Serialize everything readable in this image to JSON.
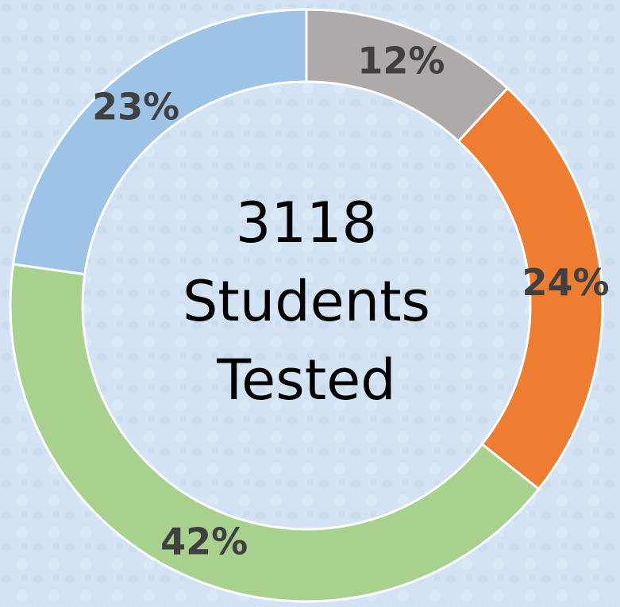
{
  "chart_data": {
    "type": "pie",
    "donut": true,
    "values": [
      12,
      24,
      42,
      23
    ],
    "value_labels": [
      "12%",
      "24%",
      "42%",
      "23%"
    ],
    "colors": [
      "#aeaaaa",
      "#ed7d31",
      "#a9d18e",
      "#9dc3e6"
    ],
    "center_text": [
      "3118",
      "Students",
      "Tested"
    ]
  }
}
